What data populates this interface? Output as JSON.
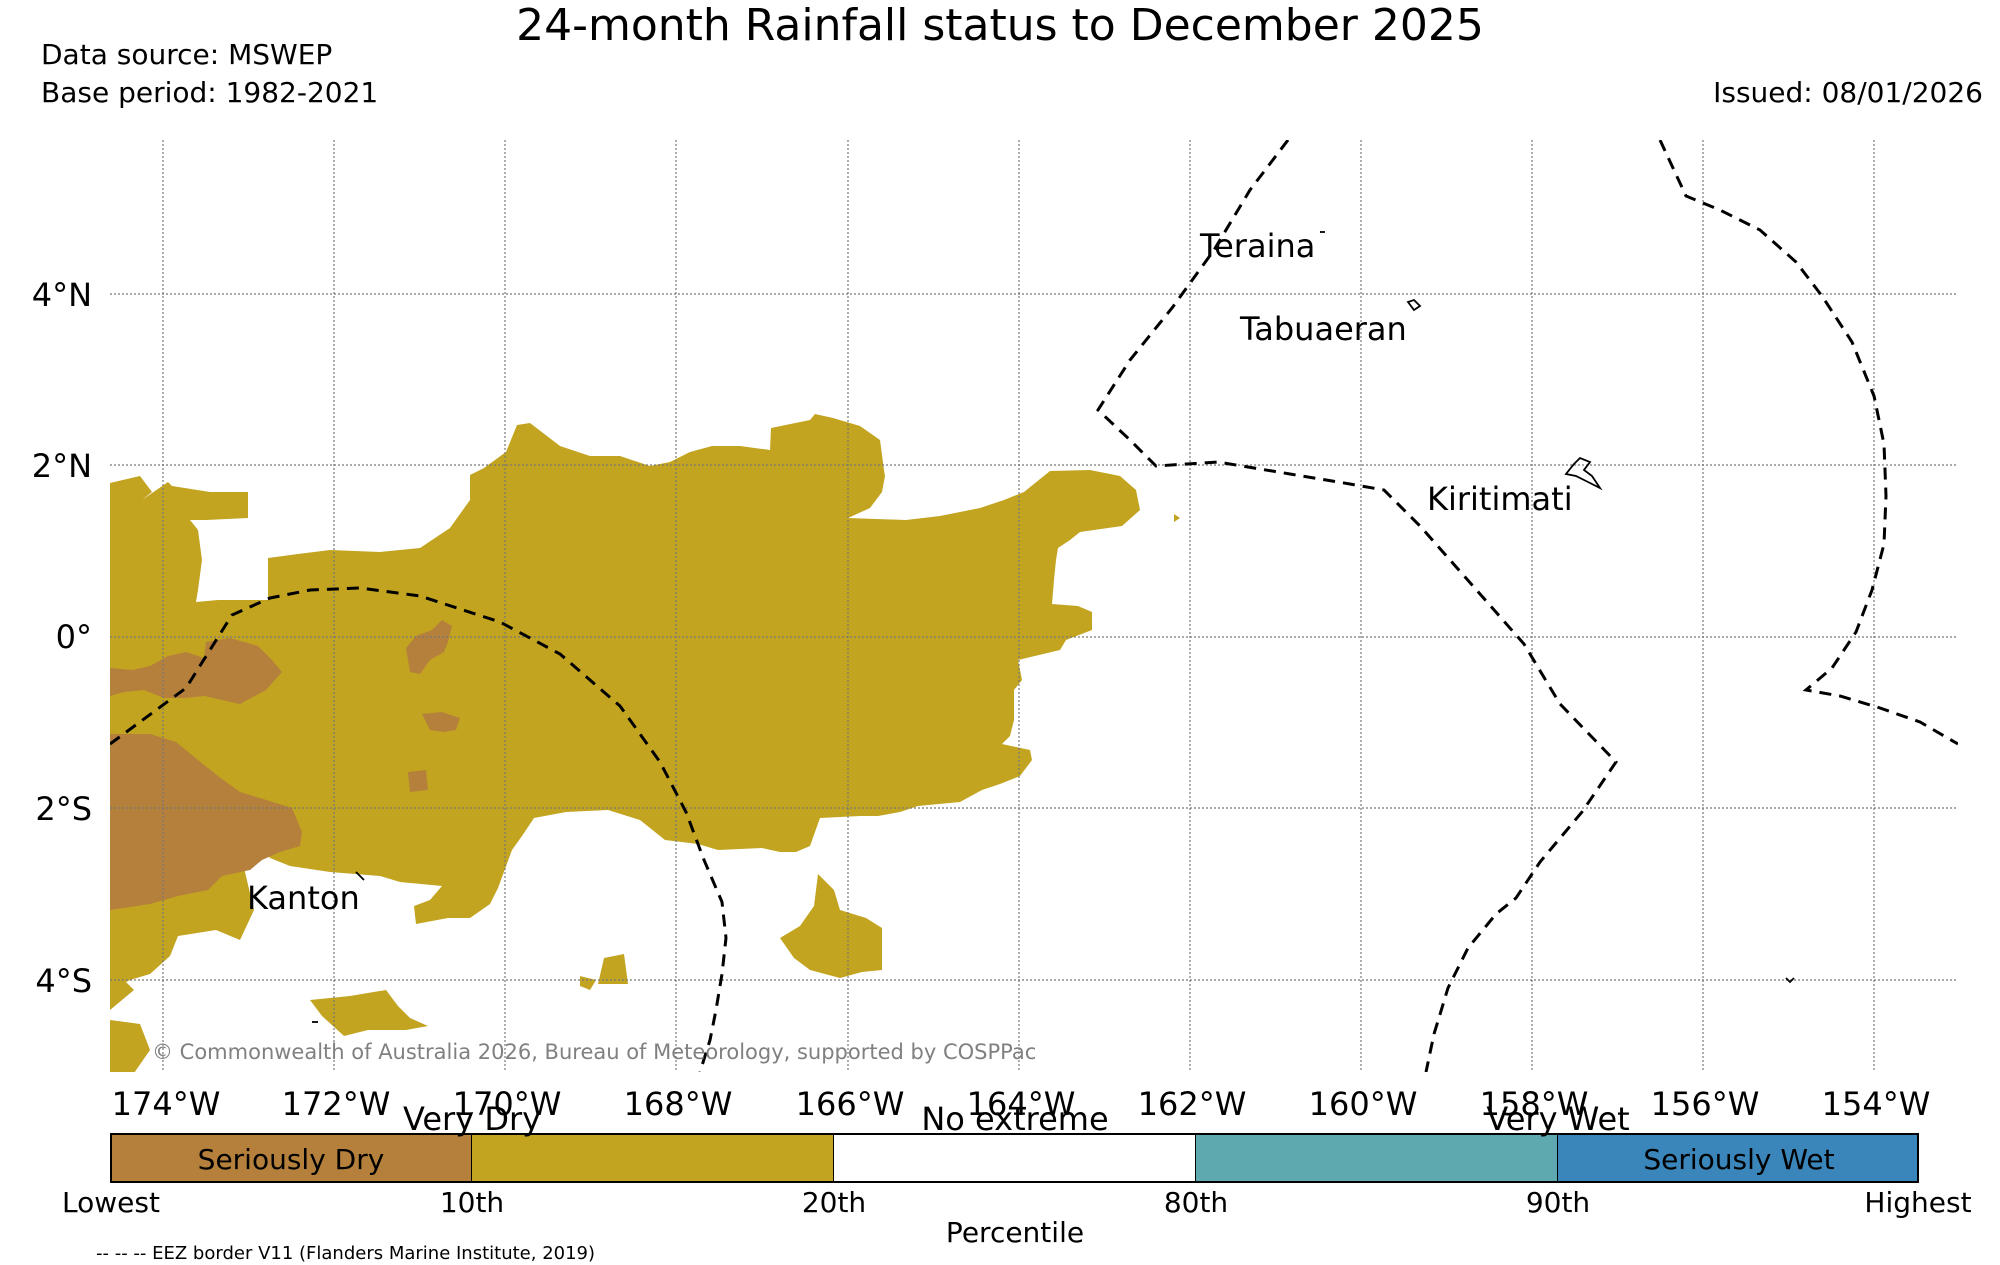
{
  "header": {
    "title": "24-month Rainfall status to December 2025",
    "source": "Data source: MSWEP",
    "base_period": "Base period: 1982-2021",
    "issued": "Issued: 08/01/2026"
  },
  "map": {
    "lat_labels": [
      "4°N",
      "2°N",
      "0°",
      "2°S",
      "4°S"
    ],
    "lon_labels": [
      "174°W",
      "172°W",
      "170°W",
      "168°W",
      "166°W",
      "164°W",
      "162°W",
      "160°W",
      "158°W",
      "156°W",
      "154°W"
    ],
    "places": [
      "Teraina",
      "Tabuaeran",
      "Kiritimati",
      "Kanton"
    ],
    "copyright": "© Commonwealth of Australia 2026, Bureau of Meteorology, supported by COSPPac",
    "colors": {
      "seriously_dry": "#b5803c",
      "very_dry": "#c2a420",
      "no_extreme": "#ffffff",
      "very_wet": "#5ea9af",
      "seriously_wet": "#3a85b9"
    }
  },
  "legend": {
    "categories": [
      "Very Dry",
      "No extreme",
      "Very Wet"
    ],
    "boxes": [
      "Seriously Dry",
      "Seriously Wet"
    ],
    "ticks": [
      "Lowest",
      "10th",
      "20th",
      "80th",
      "90th",
      "Highest"
    ],
    "xlabel": "Percentile",
    "eez_note": "-- -- -- EEZ border V11 (Flanders Marine Institute, 2019)"
  }
}
